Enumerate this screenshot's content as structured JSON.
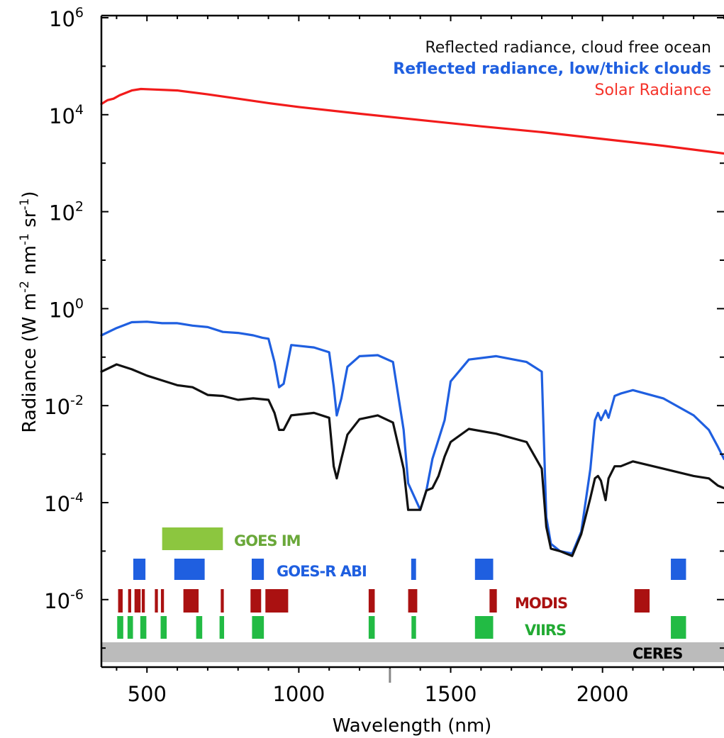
{
  "chart_data": {
    "type": "line",
    "xlabel": "Wavelength (nm)",
    "ylabel_main": "Radiance (W m",
    "ylabel_sup1": "-2",
    "ylabel_mid1": " nm",
    "ylabel_sup2": "-1",
    "ylabel_mid2": " sr",
    "ylabel_sup3": "-1",
    "ylabel_end": ")",
    "y_scale": "log",
    "xlim": [
      350,
      2400
    ],
    "ylim_log10": [
      -7.1,
      6
    ],
    "x_ticks": [
      500,
      1000,
      1500,
      2000
    ],
    "x_tick_labels": [
      "500",
      "1000",
      "1500",
      "2000"
    ],
    "y_ticks_log10": [
      6,
      4,
      2,
      0,
      -2,
      -4,
      -6
    ],
    "y_tick_base": "10",
    "y_tick_exponents": [
      "6",
      "4",
      "2",
      "0",
      "-2",
      "-4",
      "-6"
    ],
    "legend_placement": "top-right",
    "legend": [
      {
        "label": "Reflected radiance, cloud free ocean",
        "color": "#111111"
      },
      {
        "label": "Reflected radiance, low/thick clouds",
        "color": "#1f5fe0"
      },
      {
        "label": "Solar Radiance",
        "color": "#f5332a"
      }
    ],
    "series": [
      {
        "name": "Solar Radiance",
        "color": "#f21b1b",
        "x": [
          350,
          370,
          390,
          410,
          430,
          450,
          480,
          520,
          560,
          600,
          700,
          800,
          900,
          1000,
          1200,
          1400,
          1600,
          1800,
          2000,
          2200,
          2400
        ],
        "y_log10": [
          4.22,
          4.3,
          4.33,
          4.4,
          4.45,
          4.5,
          4.53,
          4.52,
          4.51,
          4.5,
          4.42,
          4.33,
          4.24,
          4.16,
          4.02,
          3.89,
          3.76,
          3.64,
          3.5,
          3.36,
          3.2
        ]
      },
      {
        "name": "Reflected radiance, low/thick clouds",
        "color": "#1f5fe0",
        "x": [
          350,
          400,
          450,
          500,
          550,
          600,
          650,
          700,
          750,
          800,
          850,
          880,
          900,
          920,
          935,
          950,
          975,
          1050,
          1100,
          1115,
          1125,
          1140,
          1160,
          1200,
          1260,
          1310,
          1345,
          1360,
          1400,
          1420,
          1440,
          1460,
          1480,
          1500,
          1560,
          1650,
          1750,
          1800,
          1815,
          1830,
          1860,
          1900,
          1930,
          1960,
          1975,
          1985,
          1995,
          2010,
          2020,
          2040,
          2060,
          2100,
          2200,
          2300,
          2350,
          2380,
          2400
        ],
        "y_log10": [
          -0.55,
          -0.4,
          -0.28,
          -0.27,
          -0.3,
          -0.3,
          -0.35,
          -0.38,
          -0.48,
          -0.5,
          -0.55,
          -0.6,
          -0.62,
          -1.1,
          -1.62,
          -1.55,
          -0.75,
          -0.8,
          -0.9,
          -1.6,
          -2.2,
          -1.85,
          -1.2,
          -0.98,
          -0.96,
          -1.1,
          -2.5,
          -3.6,
          -4.15,
          -3.75,
          -3.1,
          -2.7,
          -2.3,
          -1.5,
          -1.05,
          -0.98,
          -1.1,
          -1.3,
          -4.3,
          -4.85,
          -5.0,
          -5.05,
          -4.6,
          -3.3,
          -2.3,
          -2.15,
          -2.3,
          -2.1,
          -2.25,
          -1.8,
          -1.75,
          -1.68,
          -1.85,
          -2.2,
          -2.5,
          -2.85,
          -3.1
        ]
      },
      {
        "name": "Reflected radiance, cloud free ocean",
        "color": "#111111",
        "x": [
          350,
          400,
          450,
          500,
          550,
          600,
          650,
          700,
          750,
          800,
          850,
          900,
          920,
          935,
          950,
          975,
          1050,
          1100,
          1115,
          1125,
          1140,
          1160,
          1200,
          1260,
          1310,
          1345,
          1360,
          1400,
          1420,
          1440,
          1460,
          1480,
          1500,
          1560,
          1650,
          1750,
          1800,
          1815,
          1830,
          1860,
          1900,
          1930,
          1960,
          1975,
          1985,
          1995,
          2010,
          2020,
          2040,
          2060,
          2100,
          2200,
          2300,
          2350,
          2380,
          2400
        ],
        "y_log10": [
          -1.3,
          -1.15,
          -1.25,
          -1.38,
          -1.48,
          -1.58,
          -1.62,
          -1.78,
          -1.8,
          -1.88,
          -1.85,
          -1.88,
          -2.15,
          -2.5,
          -2.5,
          -2.2,
          -2.15,
          -2.25,
          -3.25,
          -3.5,
          -3.1,
          -2.6,
          -2.28,
          -2.2,
          -2.35,
          -3.3,
          -4.15,
          -4.15,
          -3.75,
          -3.7,
          -3.45,
          -3.05,
          -2.75,
          -2.48,
          -2.58,
          -2.75,
          -3.3,
          -4.5,
          -4.95,
          -5.0,
          -5.1,
          -4.65,
          -3.9,
          -3.5,
          -3.45,
          -3.55,
          -3.95,
          -3.5,
          -3.25,
          -3.25,
          -3.15,
          -3.3,
          -3.45,
          -3.5,
          -3.65,
          -3.7
        ]
      }
    ],
    "instrument_bands": [
      {
        "name": "GOES IM",
        "label_color": "#6aa83a",
        "color": "#8cc63f",
        "ranges": [
          [
            550,
            750
          ]
        ]
      },
      {
        "name": "GOES-R ABI",
        "label_color": "#1f5fe0",
        "color": "#1f5fe0",
        "ranges": [
          [
            455,
            495
          ],
          [
            590,
            690
          ],
          [
            845,
            885
          ],
          [
            1370,
            1386
          ],
          [
            1580,
            1640
          ],
          [
            2225,
            2275
          ]
        ]
      },
      {
        "name": "MODIS",
        "label_color": "#aa1111",
        "color": "#aa1111",
        "ranges": [
          [
            405,
            420
          ],
          [
            438,
            448
          ],
          [
            459,
            479
          ],
          [
            483,
            493
          ],
          [
            526,
            536
          ],
          [
            546,
            556
          ],
          [
            620,
            670
          ],
          [
            743,
            753
          ],
          [
            841,
            876
          ],
          [
            890,
            965
          ],
          [
            1230,
            1250
          ],
          [
            1360,
            1390
          ],
          [
            1628,
            1652
          ],
          [
            2105,
            2155
          ]
        ]
      },
      {
        "name": "VIIRS",
        "label_color": "#22aa33",
        "color": "#22bb44",
        "ranges": [
          [
            402,
            422
          ],
          [
            436,
            454
          ],
          [
            478,
            498
          ],
          [
            545,
            565
          ],
          [
            662,
            682
          ],
          [
            739,
            754
          ],
          [
            846,
            885
          ],
          [
            1230,
            1250
          ],
          [
            1371,
            1386
          ],
          [
            1580,
            1640
          ],
          [
            2225,
            2275
          ]
        ]
      },
      {
        "name": "CERES",
        "label_color": "#000000",
        "color": "#bbbbbb",
        "ranges": [
          [
            350,
            2400
          ]
        ]
      }
    ]
  }
}
